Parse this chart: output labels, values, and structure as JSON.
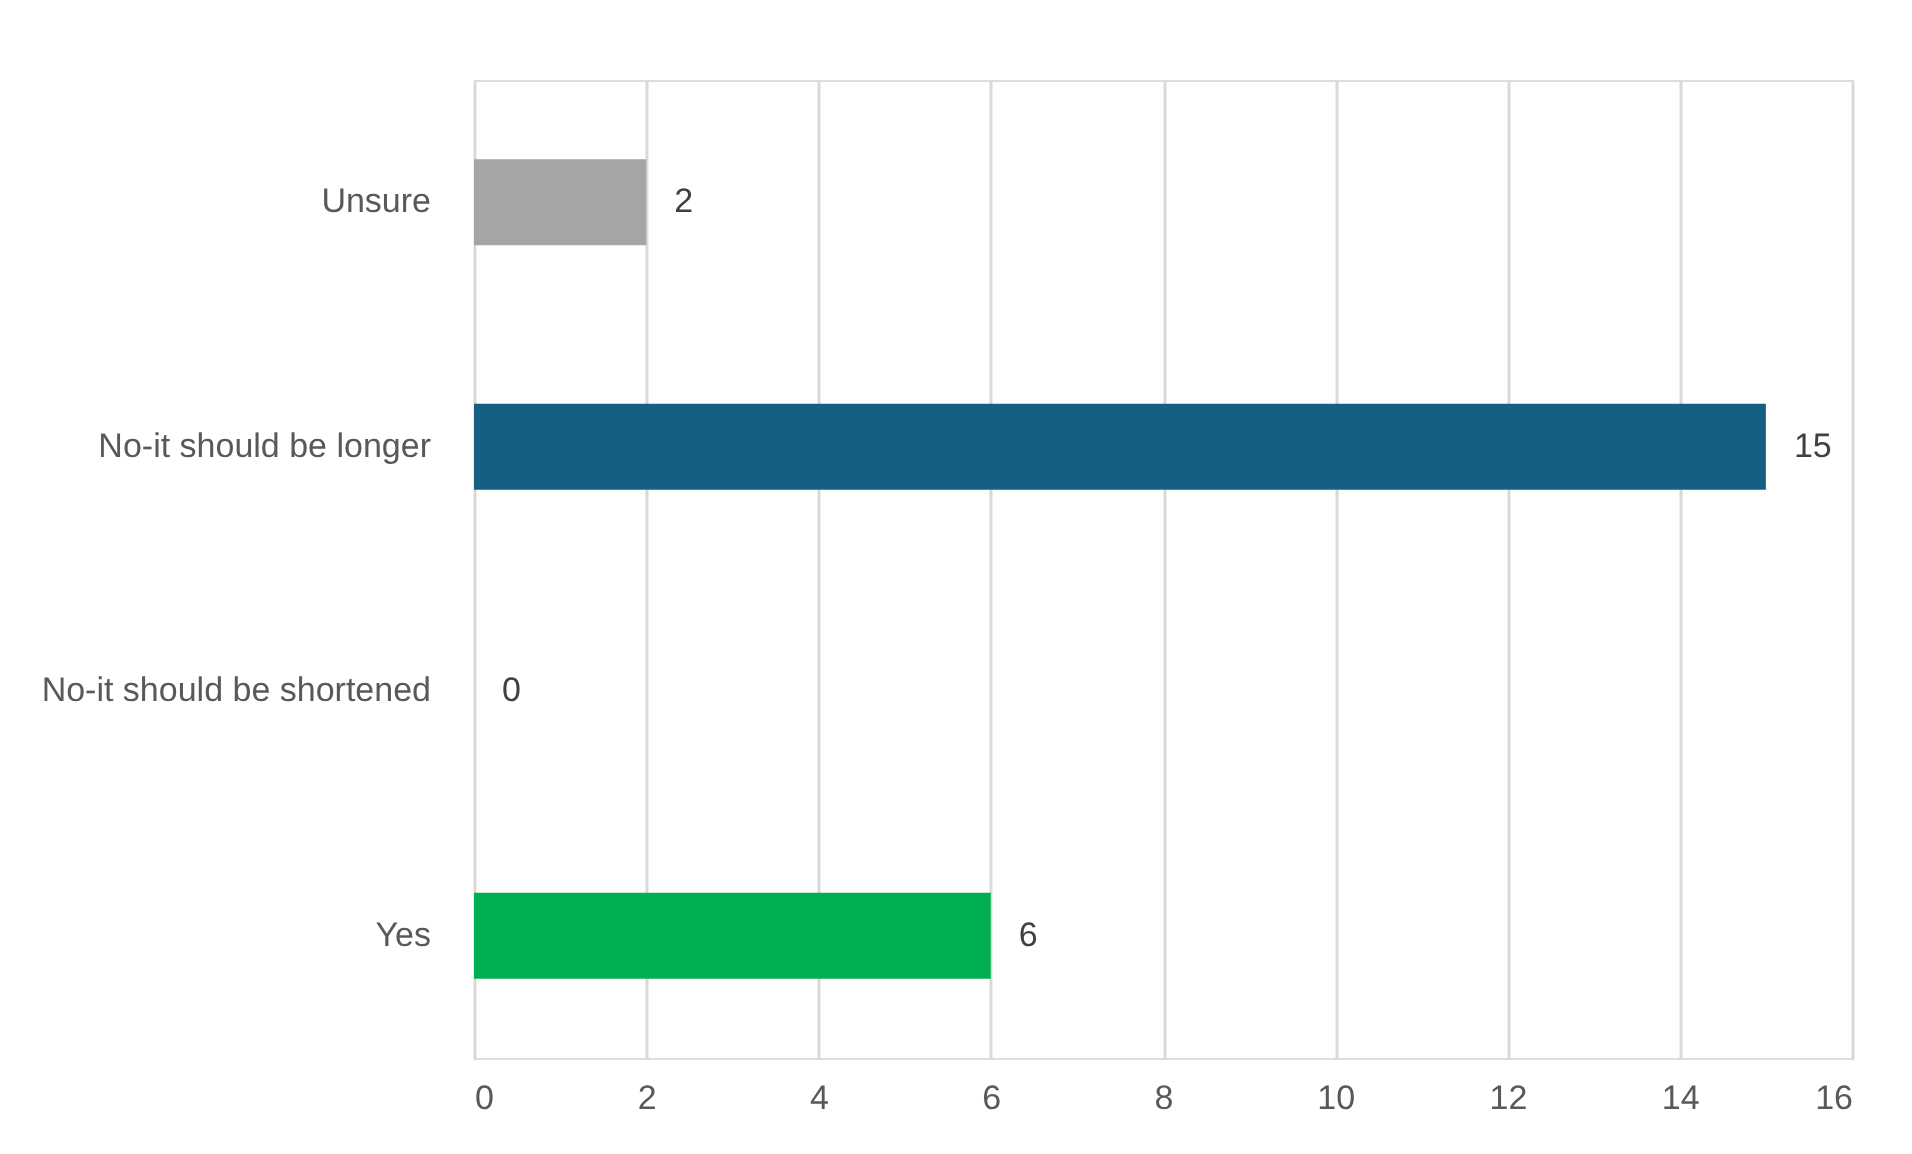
{
  "chart_data": {
    "type": "bar",
    "orientation": "horizontal",
    "categories": [
      "Unsure",
      "No-it should be longer",
      "No-it should be shortened",
      "Yes"
    ],
    "values": [
      2,
      15,
      0,
      6
    ],
    "colors": [
      "#a5a5a5",
      "#156082",
      "#e97132",
      "#00b050"
    ],
    "xlim": [
      0,
      16
    ],
    "xticks": [
      0,
      2,
      4,
      6,
      8,
      10,
      12,
      14,
      16
    ],
    "grid": "x",
    "data_labels": true,
    "legend": false
  }
}
